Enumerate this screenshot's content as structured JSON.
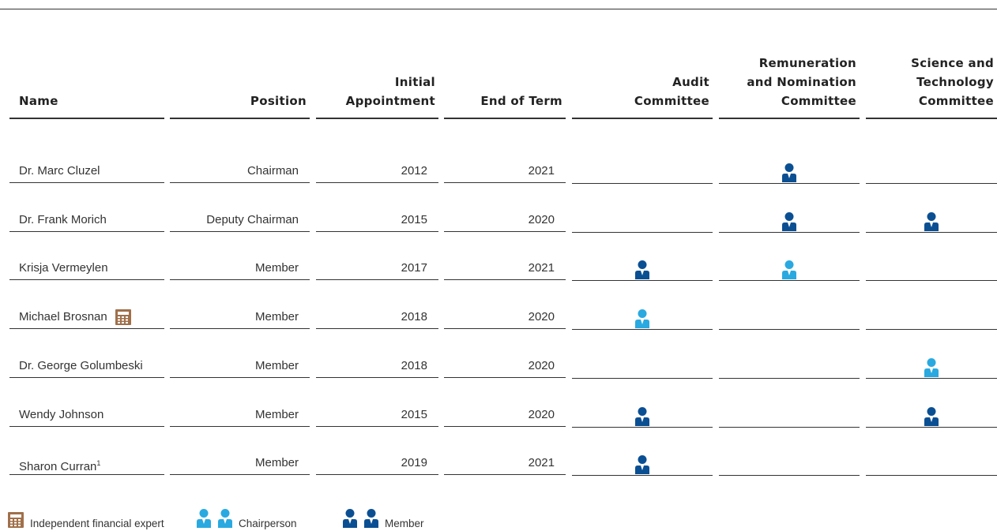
{
  "table": {
    "headers": [
      [
        "Name"
      ],
      [
        "Position"
      ],
      [
        "Initial",
        "Appointment"
      ],
      [
        "End of Term"
      ],
      [
        "Audit",
        "Committee"
      ],
      [
        "Remuneration",
        "and Nomination",
        "Committee"
      ],
      [
        "Science and",
        "Technology",
        "Committee"
      ]
    ],
    "rows": [
      {
        "name": "Dr. Marc Cluzel",
        "position": "Chairman",
        "initial": 2012,
        "end": 2021,
        "committees": [
          null,
          "Member",
          null
        ]
      },
      {
        "name": "Dr. Frank Morich",
        "position": "Deputy Chairman",
        "initial": 2015,
        "end": 2020,
        "committees": [
          null,
          "Member",
          "Member"
        ]
      },
      {
        "name": "Krisja Vermeylen",
        "position": "Member",
        "initial": 2017,
        "end": 2021,
        "committees": [
          "Member",
          "Chairperson",
          null
        ]
      },
      {
        "name": "Michael Brosnan",
        "expert": true,
        "position": "Member",
        "initial": 2018,
        "end": 2020,
        "committees": [
          "Chairperson",
          null,
          null
        ]
      },
      {
        "name": "Dr. George Golumbeski",
        "position": "Member",
        "initial": 2018,
        "end": 2020,
        "committees": [
          null,
          null,
          "Chairperson"
        ]
      },
      {
        "name": "Wendy Johnson",
        "position": "Member",
        "initial": 2015,
        "end": 2020,
        "committees": [
          "Member",
          null,
          "Member"
        ]
      },
      {
        "name": "Sharon Curran",
        "footnote": "1",
        "position": "Member",
        "initial": 2019,
        "end": 2021,
        "committees": [
          "Member",
          null,
          null
        ]
      }
    ]
  },
  "legend": {
    "expert": "Independent financial expert",
    "roles": [
      {
        "label": "Chairperson",
        "color": "#29a9e0"
      },
      {
        "label": "Member",
        "color": "#0b4f93"
      }
    ]
  }
}
